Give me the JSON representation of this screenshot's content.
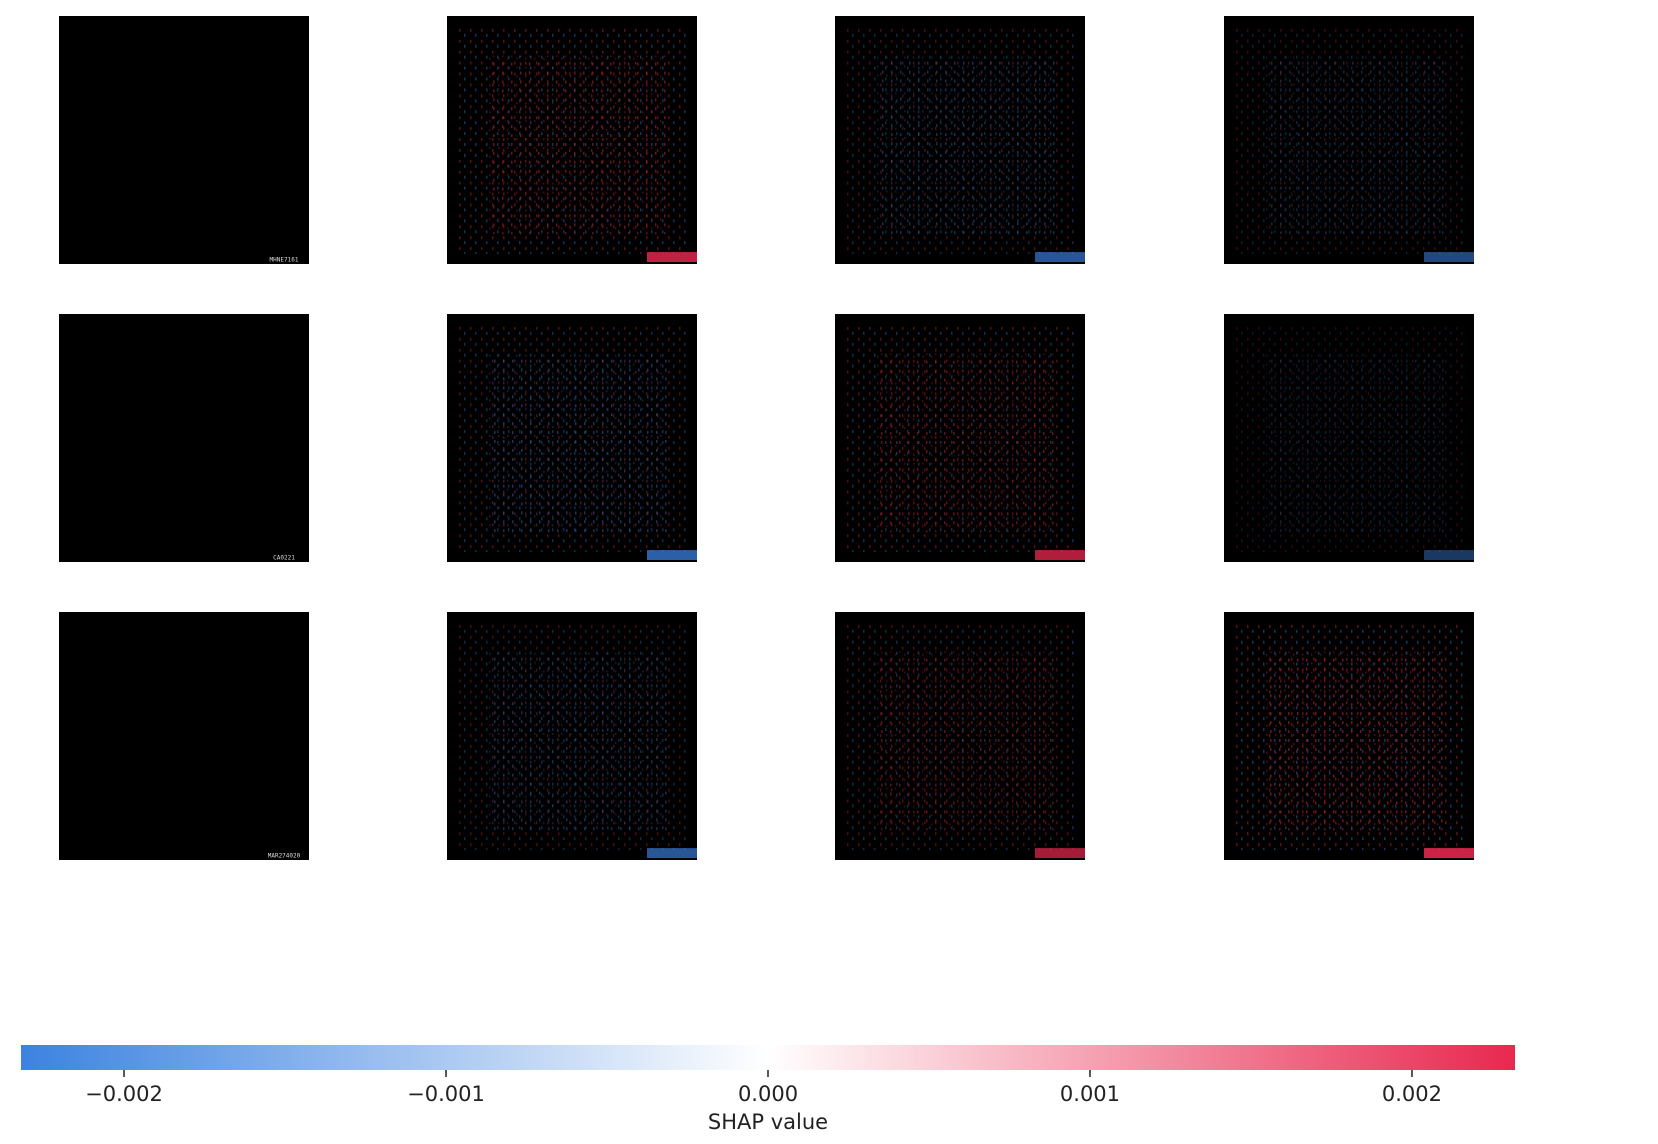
{
  "chart_data": {
    "type": "heatmap",
    "subtype": "shap-image-plot",
    "title": "",
    "rows": 3,
    "columns": 4,
    "column_roles": [
      "original-image",
      "explanation",
      "explanation",
      "explanation"
    ],
    "specimen_labels": [
      "MHNE7161",
      "CA0221",
      "MAR274020"
    ],
    "attribution_summary": [
      [
        null,
        0.0018,
        -0.0012,
        -0.0008
      ],
      [
        null,
        -0.0015,
        0.0016,
        -0.0003
      ],
      [
        null,
        -0.0012,
        0.0014,
        0.002
      ]
    ],
    "colorbar": {
      "xlabel": "SHAP value",
      "range": [
        -0.00232,
        0.00232
      ],
      "ticks": [
        -0.002,
        -0.001,
        0.0,
        0.001,
        0.002
      ],
      "tick_labels": [
        "−0.002",
        "−0.001",
        "0.000",
        "0.001",
        "0.002"
      ],
      "colormap": [
        "#3c82e0",
        "#ffffff",
        "#e8284f"
      ],
      "orientation": "horizontal",
      "placement": "bottom"
    }
  },
  "colors": {
    "negative": "#3c82e0",
    "neutral": "#ffffff",
    "positive": "#e8284f"
  }
}
